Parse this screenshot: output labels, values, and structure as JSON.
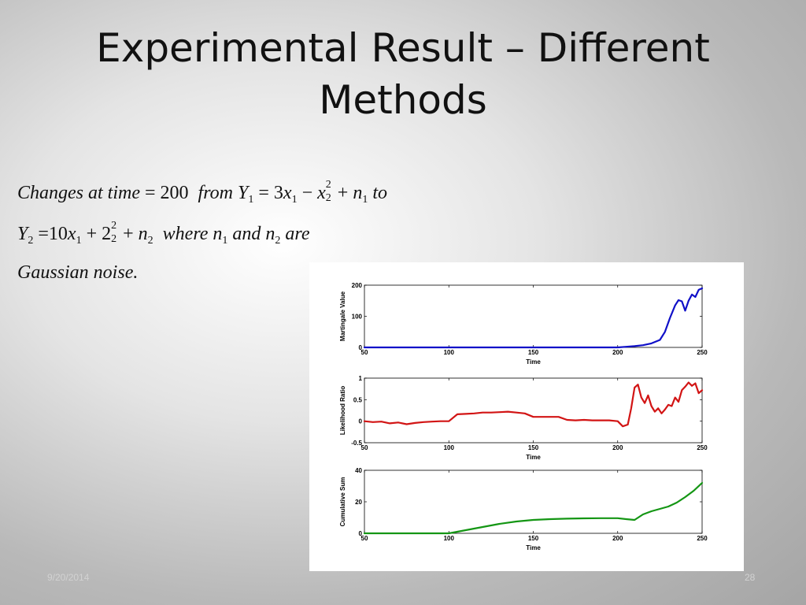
{
  "slide": {
    "title_line1": "Experimental Result – Different",
    "title_line2": "Methods",
    "date": "9/20/2014",
    "page_number": "28"
  },
  "equation": {
    "line1": {
      "w_changes": "Changes",
      "w_at": "at",
      "w_time": "time",
      "op_eq1": "=",
      "n_200": "200",
      "w_from": "from",
      "var_Y": "Y",
      "sub_1": "1",
      "op_eq2": "=",
      "n_3": "3",
      "var_x": "x",
      "sub_x1": "1",
      "op_minus": "−",
      "var_x2": "x",
      "sup_2": "2",
      "sub_2": "2",
      "op_plus": "+",
      "var_n": "n",
      "sub_n1": "1",
      "w_to": "to"
    },
    "line2": {
      "var_Y": "Y",
      "sub_2": "2",
      "op_eq": "=",
      "n_10": "10",
      "var_x": "x",
      "sub_x1": "1",
      "op_plus1": "+",
      "n_2": "2",
      "sup_2": "2",
      "sub_22": "2",
      "op_plus2": "+",
      "var_n": "n",
      "sub_n2": "2",
      "w_where": "where",
      "var_n1": "n",
      "sub_n1": "1",
      "w_and": "and",
      "var_n2": "n",
      "sub_n22": "2",
      "w_are": "are"
    },
    "line3": "Gaussian noise."
  },
  "chart_data": [
    {
      "type": "line",
      "title": "",
      "xlabel": "Time",
      "ylabel": "Martingale Value",
      "xlim": [
        50,
        250
      ],
      "ylim": [
        0,
        200
      ],
      "xticks": [
        "50",
        "100",
        "150",
        "200",
        "250"
      ],
      "yticks": [
        "0",
        "100",
        "200"
      ],
      "color": "#1010c8",
      "series": [
        {
          "x": [
            50,
            100,
            150,
            200,
            205,
            210,
            215,
            220,
            225,
            228,
            231,
            234,
            236,
            238,
            240,
            242,
            244,
            246,
            248,
            250
          ],
          "values": [
            0,
            0,
            0,
            0,
            2,
            4,
            7,
            13,
            24,
            50,
            95,
            135,
            152,
            148,
            118,
            150,
            170,
            162,
            185,
            190
          ]
        }
      ]
    },
    {
      "type": "line",
      "title": "",
      "xlabel": "Time",
      "ylabel": "Likelihood Ratio",
      "xlim": [
        50,
        250
      ],
      "ylim": [
        -0.5,
        1
      ],
      "xticks": [
        "50",
        "100",
        "150",
        "200",
        "250"
      ],
      "yticks": [
        "-0.5",
        "0",
        "0.5",
        "1"
      ],
      "color": "#d21414",
      "series": [
        {
          "x": [
            50,
            55,
            60,
            65,
            70,
            75,
            80,
            85,
            90,
            95,
            100,
            105,
            110,
            115,
            120,
            125,
            130,
            135,
            140,
            145,
            150,
            155,
            160,
            165,
            170,
            175,
            180,
            185,
            190,
            195,
            200,
            203,
            206,
            208,
            210,
            212,
            214,
            216,
            218,
            220,
            222,
            224,
            226,
            228,
            230,
            232,
            234,
            236,
            238,
            240,
            242,
            244,
            246,
            248,
            250
          ],
          "values": [
            0.0,
            -0.02,
            -0.01,
            -0.05,
            -0.03,
            -0.07,
            -0.04,
            -0.02,
            -0.01,
            0.0,
            0.0,
            0.16,
            0.17,
            0.18,
            0.2,
            0.2,
            0.21,
            0.22,
            0.2,
            0.18,
            0.1,
            0.1,
            0.1,
            0.1,
            0.03,
            0.02,
            0.03,
            0.02,
            0.02,
            0.02,
            0.0,
            -0.12,
            -0.08,
            0.3,
            0.78,
            0.85,
            0.55,
            0.42,
            0.6,
            0.35,
            0.22,
            0.3,
            0.18,
            0.27,
            0.38,
            0.35,
            0.55,
            0.45,
            0.72,
            0.8,
            0.9,
            0.82,
            0.88,
            0.65,
            0.72
          ]
        }
      ]
    },
    {
      "type": "line",
      "title": "",
      "xlabel": "Time",
      "ylabel": "Cumulative Sum",
      "xlim": [
        50,
        250
      ],
      "ylim": [
        0,
        40
      ],
      "xticks": [
        "50",
        "100",
        "150",
        "200",
        "250"
      ],
      "yticks": [
        "0",
        "20",
        "40"
      ],
      "color": "#149614",
      "series": [
        {
          "x": [
            50,
            100,
            110,
            120,
            130,
            140,
            150,
            160,
            170,
            180,
            190,
            200,
            205,
            210,
            215,
            220,
            225,
            230,
            235,
            240,
            245,
            250
          ],
          "values": [
            0,
            0,
            2,
            4,
            6,
            7.5,
            8.5,
            9,
            9.3,
            9.5,
            9.6,
            9.6,
            9,
            8.5,
            12,
            14,
            15.5,
            17,
            19.5,
            23,
            27,
            32
          ]
        }
      ]
    }
  ]
}
